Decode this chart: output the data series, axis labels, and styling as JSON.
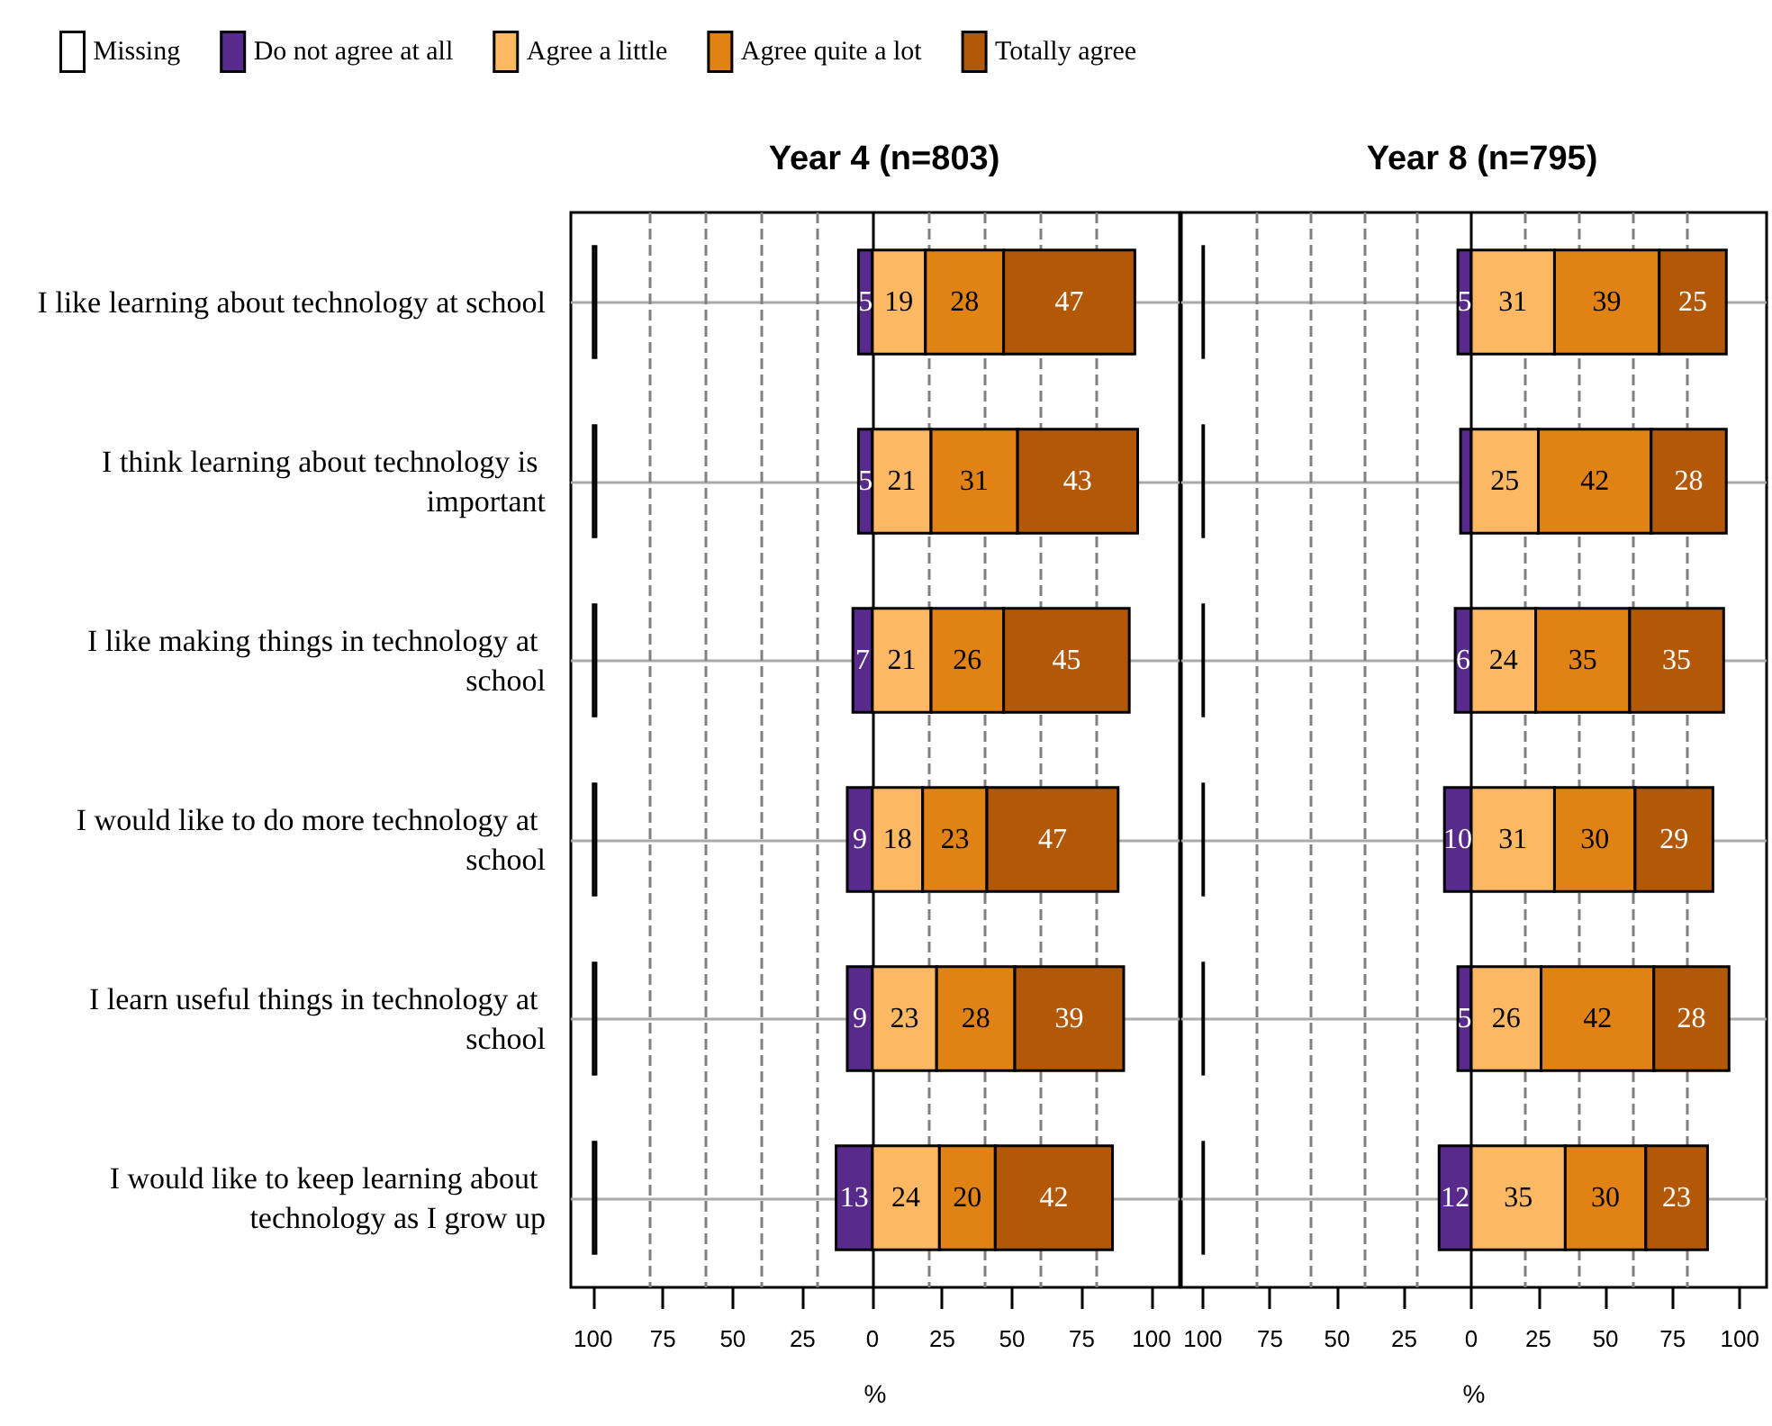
{
  "chart_data": [
    {
      "type": "bar",
      "orientation": "horizontal",
      "title": "Year 4 (n=803)",
      "xlabel": "%",
      "legend": "top",
      "grid": "y",
      "categories": [
        "I like learning about technology at school",
        "I think learning about technology is important",
        "I like making things in technology at school",
        "I would like to do more technology at school",
        "I learn useful things in technology at school",
        "I would like to keep learning about technology as I grow up"
      ],
      "xlim": [
        -108,
        110
      ],
      "xticks": [
        {
          "value": -100,
          "label": "100"
        },
        {
          "value": -75,
          "label": "75"
        },
        {
          "value": -50,
          "label": "50"
        },
        {
          "value": -25,
          "label": "25"
        },
        0,
        25,
        50,
        75,
        100
      ],
      "ref_lines": [
        {
          "axis": "x",
          "value": -80,
          "color": "#808080",
          "line_style": "dashed"
        },
        {
          "axis": "x",
          "value": -60,
          "color": "#808080",
          "line_style": "dashed"
        },
        {
          "axis": "x",
          "value": -40,
          "color": "#808080",
          "line_style": "dashed"
        },
        {
          "axis": "x",
          "value": -20,
          "color": "#808080",
          "line_style": "dashed"
        },
        {
          "axis": "x",
          "value": 20,
          "color": "#808080",
          "line_style": "dashed"
        },
        {
          "axis": "x",
          "value": 40,
          "color": "#808080",
          "line_style": "dashed"
        },
        {
          "axis": "x",
          "value": 60,
          "color": "#808080",
          "line_style": "dashed"
        },
        {
          "axis": "x",
          "value": 80,
          "color": "#808080",
          "line_style": "dashed"
        },
        {
          "axis": "x",
          "value": 0,
          "color": "#000000",
          "line_style": "solid"
        }
      ],
      "series": [
        {
          "name": "Missing",
          "color": "#ffffff",
          "base": [
            -100,
            -100,
            -100,
            -100,
            -100,
            -100
          ],
          "values": [
            1,
            1,
            1,
            1,
            1,
            1
          ]
        },
        {
          "name": "Do not agree at all",
          "color": "#582a8c",
          "base": [
            -5,
            -5,
            -7,
            -9,
            -9,
            -13
          ],
          "values": [
            5,
            5,
            7,
            9,
            9,
            13
          ],
          "value_labels": [
            "5",
            "5",
            "7",
            "9",
            "9",
            "13"
          ]
        },
        {
          "name": "Agree a little",
          "color": "#fdb863",
          "base": [
            0,
            0,
            0,
            0,
            0,
            0
          ],
          "values": [
            19,
            21,
            21,
            18,
            23,
            24
          ],
          "value_labels": [
            "19",
            "21",
            "21",
            "18",
            "23",
            "24"
          ]
        },
        {
          "name": "Agree quite a lot",
          "color": "#e08214",
          "base": [
            19,
            21,
            21,
            18,
            23,
            24
          ],
          "values": [
            28,
            31,
            26,
            23,
            28,
            20
          ],
          "value_labels": [
            "28",
            "31",
            "26",
            "23",
            "28",
            "20"
          ]
        },
        {
          "name": "Totally agree",
          "color": "#b35806",
          "base": [
            47,
            52,
            47,
            41,
            51,
            44
          ],
          "values": [
            47,
            43,
            45,
            47,
            39,
            42
          ],
          "value_labels": [
            "47",
            "43",
            "45",
            "47",
            "39",
            "42"
          ]
        }
      ]
    },
    {
      "type": "bar",
      "orientation": "horizontal",
      "title": "Year 8 (n=795)",
      "xlabel": "%",
      "grid": "y",
      "categories": [
        null,
        null,
        null,
        null,
        null,
        null
      ],
      "xlim": [
        -108,
        110
      ],
      "xticks": [
        {
          "value": -100,
          "label": "100"
        },
        {
          "value": -75,
          "label": "75"
        },
        {
          "value": -50,
          "label": "50"
        },
        {
          "value": -25,
          "label": "25"
        },
        0,
        25,
        50,
        75,
        100
      ],
      "ref_lines": [
        {
          "axis": "x",
          "value": -80,
          "color": "#808080",
          "line_style": "dashed"
        },
        {
          "axis": "x",
          "value": -60,
          "color": "#808080",
          "line_style": "dashed"
        },
        {
          "axis": "x",
          "value": -40,
          "color": "#808080",
          "line_style": "dashed"
        },
        {
          "axis": "x",
          "value": -20,
          "color": "#808080",
          "line_style": "dashed"
        },
        {
          "axis": "x",
          "value": 20,
          "color": "#808080",
          "line_style": "dashed"
        },
        {
          "axis": "x",
          "value": 40,
          "color": "#808080",
          "line_style": "dashed"
        },
        {
          "axis": "x",
          "value": 60,
          "color": "#808080",
          "line_style": "dashed"
        },
        {
          "axis": "x",
          "value": 80,
          "color": "#808080",
          "line_style": "dashed"
        },
        {
          "axis": "x",
          "value": 0,
          "color": "#000000",
          "line_style": "solid"
        }
      ],
      "series": [
        {
          "color": "#ffffff",
          "base": [
            -100,
            -100,
            -100,
            -100,
            -100,
            -100
          ],
          "values": [
            0.3,
            0.3,
            0.3,
            0.3,
            0.3,
            0.3
          ]
        },
        {
          "color": "#582a8c",
          "base": [
            -5,
            -4,
            -6,
            -10,
            -5,
            -12
          ],
          "values": [
            5,
            4,
            6,
            10,
            5,
            12
          ],
          "value_labels": [
            "5",
            null,
            "6",
            "10",
            "5",
            "12"
          ]
        },
        {
          "color": "#fdb863",
          "base": [
            0,
            0,
            0,
            0,
            0,
            0
          ],
          "values": [
            31,
            25,
            24,
            31,
            26,
            35
          ],
          "value_labels": [
            "31",
            "25",
            "24",
            "31",
            "26",
            "35"
          ]
        },
        {
          "color": "#e08214",
          "base": [
            31,
            25,
            24,
            31,
            26,
            35
          ],
          "values": [
            39,
            42,
            35,
            30,
            42,
            30
          ],
          "value_labels": [
            "39",
            "42",
            "35",
            "30",
            "42",
            "30"
          ]
        },
        {
          "color": "#b35806",
          "base": [
            70,
            67,
            59,
            61,
            68,
            65
          ],
          "values": [
            25,
            28,
            35,
            29,
            28,
            23
          ],
          "value_labels": [
            "25",
            "28",
            "35",
            "29",
            "28",
            "23"
          ]
        }
      ]
    }
  ]
}
